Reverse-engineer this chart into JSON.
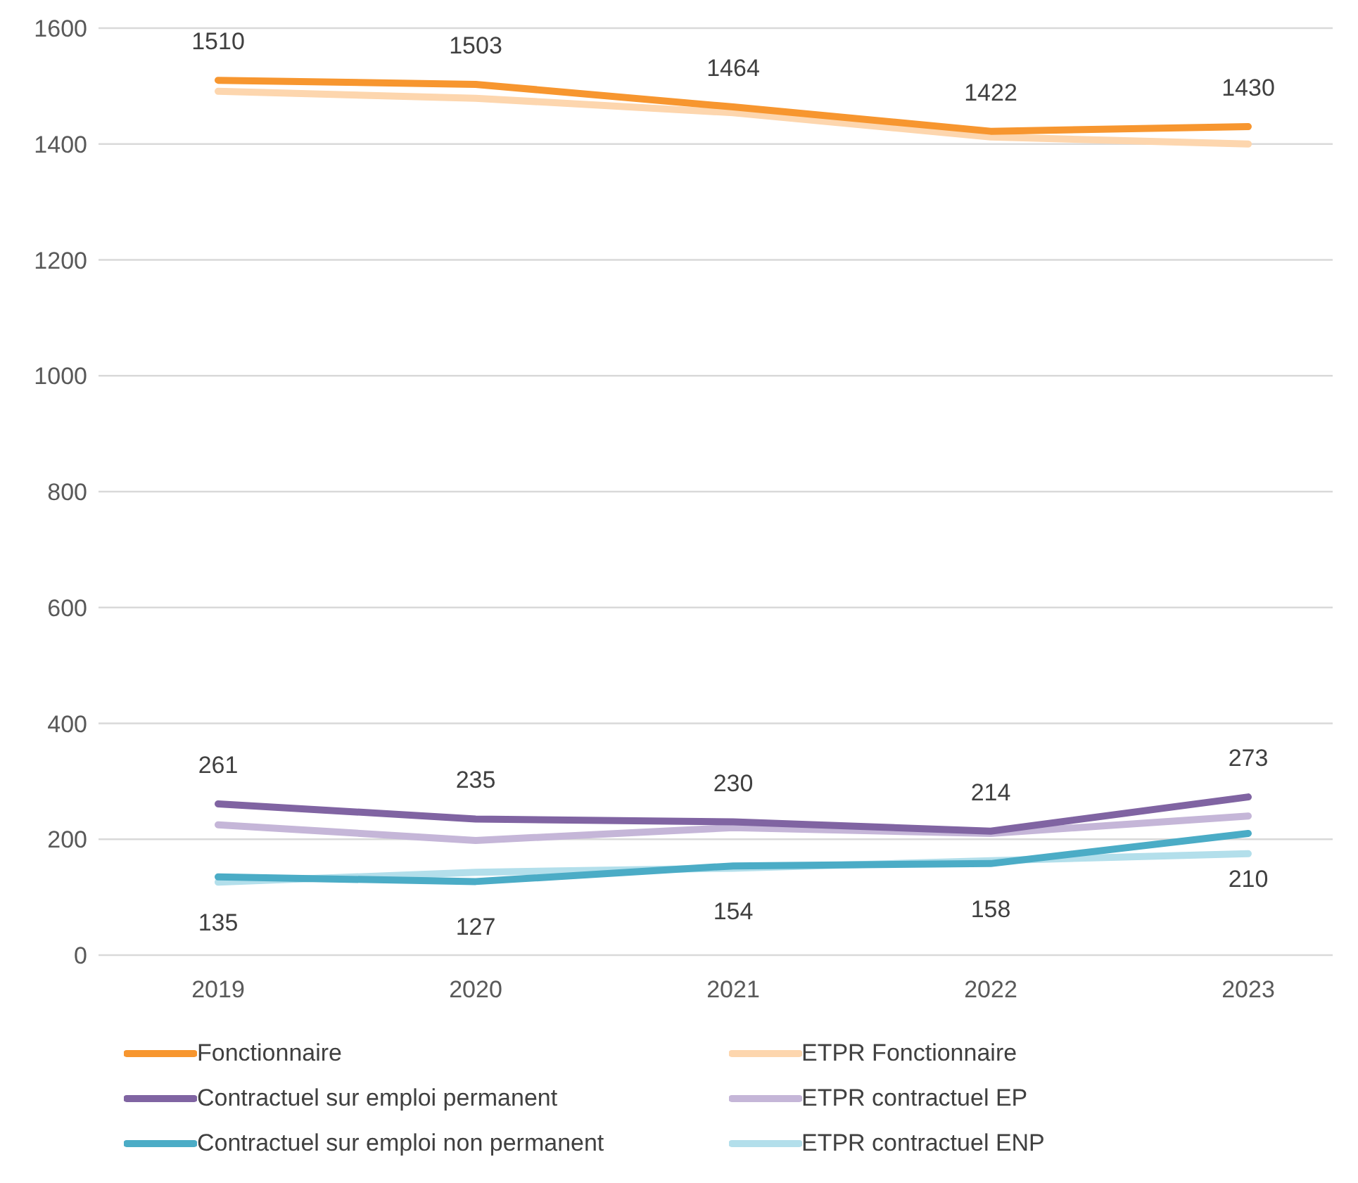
{
  "chart_data": {
    "type": "line",
    "categories": [
      "2019",
      "2020",
      "2021",
      "2022",
      "2023"
    ],
    "series": [
      {
        "name": "Fonctionnaire",
        "color": "#f7962f",
        "values": [
          1510,
          1503,
          1464,
          1422,
          1430
        ],
        "value_labels": [
          "1510",
          "1503",
          "1464",
          "1422",
          "1430"
        ]
      },
      {
        "name": "ETPR Fonctionnaire",
        "color": "#fdd6ae",
        "values": [
          1491,
          1479,
          1454,
          1412,
          1400
        ]
      },
      {
        "name": "Contractuel sur emploi permanent",
        "color": "#8064a2",
        "values": [
          261,
          235,
          230,
          214,
          273
        ],
        "value_labels": [
          "261",
          "235",
          "230",
          "214",
          "273"
        ]
      },
      {
        "name": "ETPR contractuel EP",
        "color": "#c5b6d8",
        "values": [
          225,
          198,
          220,
          210,
          240
        ]
      },
      {
        "name": "Contractuel sur emploi non permanent",
        "color": "#4bacc6",
        "values": [
          135,
          127,
          154,
          158,
          210
        ],
        "value_labels": [
          "135",
          "127",
          "154",
          "158",
          "210"
        ]
      },
      {
        "name": "ETPR contractuel ENP",
        "color": "#b3dfeb",
        "values": [
          126,
          143,
          150,
          163,
          175
        ]
      }
    ],
    "ylim": [
      0,
      1600
    ],
    "yticks": [
      0,
      200,
      400,
      600,
      800,
      1000,
      1200,
      1400,
      1600
    ],
    "grid": "y",
    "legend": "bottom",
    "marker": "none",
    "line_style": "solid"
  }
}
